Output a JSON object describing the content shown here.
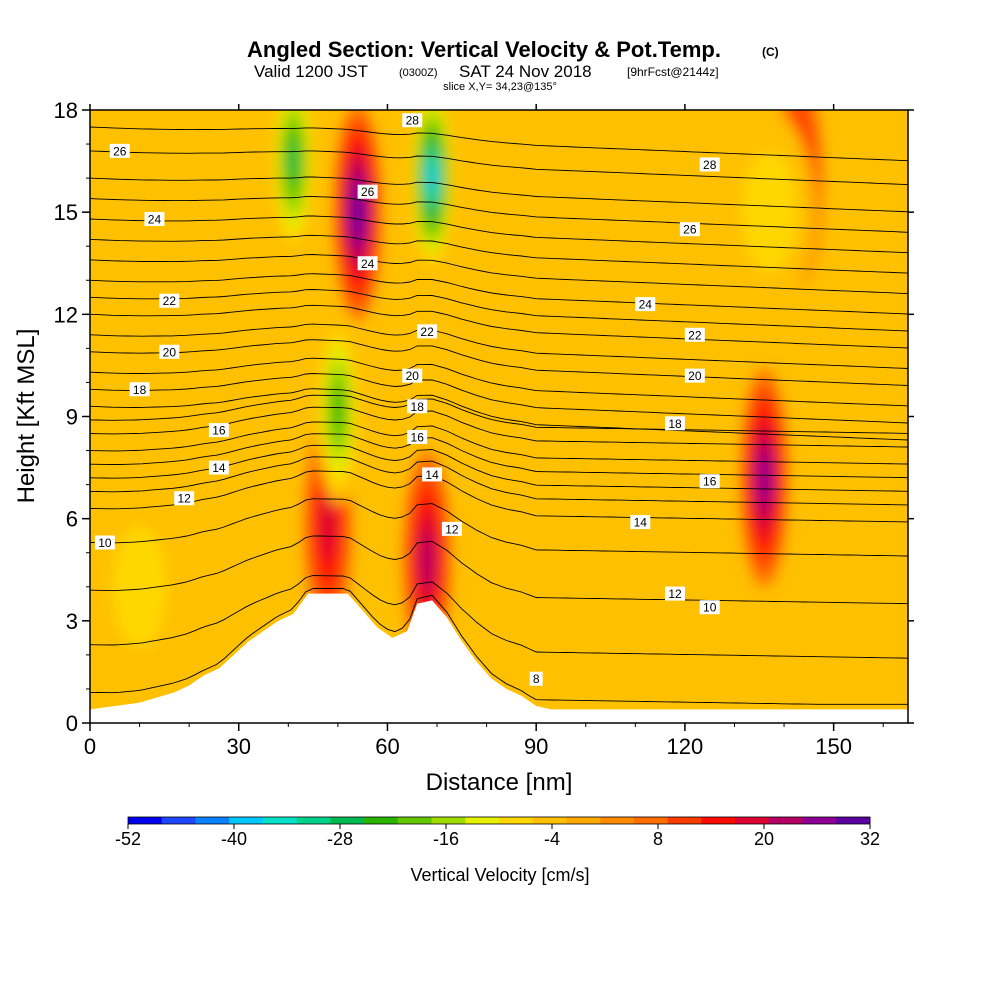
{
  "chart_data": {
    "type": "heatmap",
    "title": "Angled Section: Vertical Velocity & Pot.Temp.",
    "title_mark": "(C)",
    "subtitle": {
      "prefix": "Valid 1200 JST",
      "utc": "(0300Z)",
      "date": "SAT 24 Nov 2018",
      "forecast": "[9hrFcst@2144z]"
    },
    "slice": "slice X,Y= 34,23@135°",
    "xlabel": "Distance [nm]",
    "ylabel": "Height [Kft MSL]",
    "xlim": [
      0,
      165
    ],
    "ylim": [
      0,
      18
    ],
    "x_ticks": [
      0,
      30,
      60,
      90,
      120,
      150
    ],
    "y_ticks": [
      0,
      3,
      6,
      9,
      12,
      15,
      18
    ],
    "colorbar": {
      "label": "Vertical Velocity [cm/s]",
      "tick_labels": [
        "-52",
        "-40",
        "-28",
        "-16",
        "-4",
        "8",
        "20",
        "32"
      ],
      "min": -52,
      "max": 32,
      "step": 4,
      "colors": [
        "#0000f0",
        "#1e46ff",
        "#0a82ff",
        "#00c8ff",
        "#00e1c8",
        "#00d28c",
        "#00b950",
        "#28b400",
        "#64c800",
        "#a0dc00",
        "#e6f000",
        "#ffd700",
        "#ffc000",
        "#ffaa00",
        "#ff8c00",
        "#ff6e00",
        "#ff3c00",
        "#ff0a00",
        "#dc0032",
        "#b40064",
        "#8c0096",
        "#5a00a0"
      ]
    },
    "velocity_features": [
      {
        "kind": "updraft",
        "x": 48,
        "y": 5.8,
        "value": 20
      },
      {
        "kind": "updraft",
        "x": 54,
        "y": 15,
        "value": 32
      },
      {
        "kind": "updraft",
        "x": 68,
        "y": 4.8,
        "value": 24
      },
      {
        "kind": "updraft",
        "x": 136,
        "y": 7.2,
        "value": 28
      },
      {
        "kind": "updraft",
        "x": 143,
        "y": 16,
        "value": 16
      },
      {
        "kind": "downdraft",
        "x": 41,
        "y": 16.5,
        "value": -28
      },
      {
        "kind": "downdraft",
        "x": 69,
        "y": 16,
        "value": -40
      },
      {
        "kind": "downdraft",
        "x": 50,
        "y": 9.2,
        "value": -24
      },
      {
        "kind": "weak_down",
        "x": 137,
        "y": 15,
        "value": -8
      },
      {
        "kind": "weak_down",
        "x": 10,
        "y": 4,
        "value": -8
      }
    ],
    "terrain": [
      [
        0,
        0.4
      ],
      [
        10,
        0.6
      ],
      [
        17,
        0.9
      ],
      [
        20,
        1.1
      ],
      [
        23,
        1.4
      ],
      [
        26,
        1.6
      ],
      [
        29,
        2.0
      ],
      [
        32,
        2.4
      ],
      [
        35,
        2.7
      ],
      [
        38,
        3.0
      ],
      [
        41,
        3.2
      ],
      [
        44,
        3.8
      ],
      [
        48,
        3.8
      ],
      [
        52,
        3.8
      ],
      [
        55,
        3.3
      ],
      [
        58,
        2.8
      ],
      [
        61,
        2.5
      ],
      [
        64,
        2.7
      ],
      [
        66,
        3.5
      ],
      [
        69,
        3.6
      ],
      [
        72,
        3.1
      ],
      [
        75,
        2.4
      ],
      [
        78,
        1.8
      ],
      [
        81,
        1.3
      ],
      [
        84,
        1.0
      ],
      [
        87,
        0.8
      ],
      [
        90,
        0.5
      ],
      [
        93,
        0.4
      ],
      [
        165,
        0.4
      ]
    ],
    "theta_contour_labels": [
      {
        "text": "26",
        "x": 6,
        "y": 16.8
      },
      {
        "text": "24",
        "x": 13,
        "y": 14.8
      },
      {
        "text": "22",
        "x": 16,
        "y": 12.4
      },
      {
        "text": "20",
        "x": 16,
        "y": 10.9
      },
      {
        "text": "18",
        "x": 10,
        "y": 9.8
      },
      {
        "text": "16",
        "x": 26,
        "y": 8.6
      },
      {
        "text": "14",
        "x": 26,
        "y": 7.5
      },
      {
        "text": "12",
        "x": 19,
        "y": 6.6
      },
      {
        "text": "10",
        "x": 3,
        "y": 5.3
      },
      {
        "text": "28",
        "x": 65,
        "y": 17.7
      },
      {
        "text": "26",
        "x": 56,
        "y": 15.6
      },
      {
        "text": "24",
        "x": 56,
        "y": 13.5
      },
      {
        "text": "22",
        "x": 68,
        "y": 11.5
      },
      {
        "text": "20",
        "x": 65,
        "y": 10.2
      },
      {
        "text": "18",
        "x": 66,
        "y": 9.3
      },
      {
        "text": "16",
        "x": 66,
        "y": 8.4
      },
      {
        "text": "14",
        "x": 69,
        "y": 7.3
      },
      {
        "text": "12",
        "x": 73,
        "y": 5.7
      },
      {
        "text": "28",
        "x": 125,
        "y": 16.4
      },
      {
        "text": "26",
        "x": 121,
        "y": 14.5
      },
      {
        "text": "24",
        "x": 112,
        "y": 12.3
      },
      {
        "text": "22",
        "x": 122,
        "y": 11.4
      },
      {
        "text": "20",
        "x": 122,
        "y": 10.2
      },
      {
        "text": "18",
        "x": 118,
        "y": 8.8
      },
      {
        "text": "16",
        "x": 125,
        "y": 7.1
      },
      {
        "text": "14",
        "x": 111,
        "y": 5.9
      },
      {
        "text": "12",
        "x": 118,
        "y": 3.8
      },
      {
        "text": "10",
        "x": 125,
        "y": 3.4
      },
      {
        "text": "8",
        "x": 90,
        "y": 1.3
      }
    ],
    "theta_contour_heights_at_left": [
      0.9,
      2.3,
      3.9,
      5.3,
      6.3,
      6.8,
      7.2,
      7.6,
      8.0,
      8.5,
      8.9,
      9.3,
      9.8,
      10.3,
      10.9,
      11.4,
      12.0,
      12.5,
      13.0,
      13.6,
      14.2,
      14.8,
      15.4,
      16.0,
      16.8,
      17.5
    ]
  }
}
